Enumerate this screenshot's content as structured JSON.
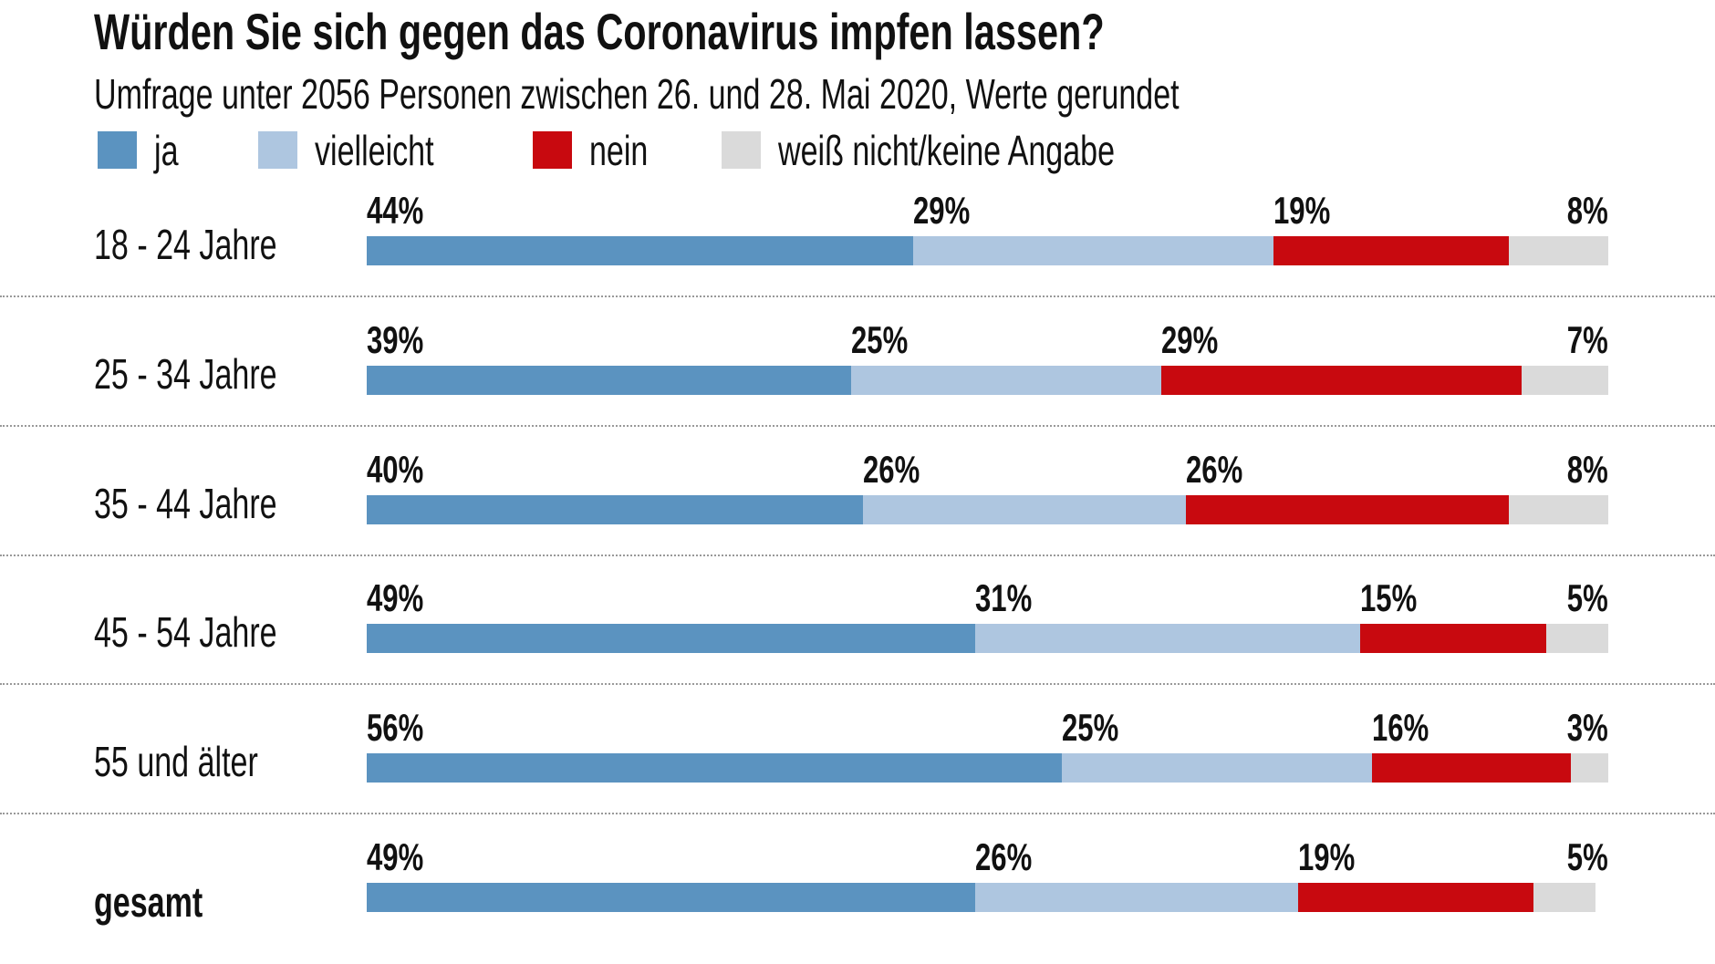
{
  "chart_data": {
    "type": "bar",
    "orientation": "horizontal",
    "stacked": true,
    "title": "Würden Sie sich gegen das Coronavirus impfen lassen?",
    "subtitle": "Umfrage unter 2056 Personen zwischen 26. und 28. Mai 2020, Werte gerundet",
    "unit": "%",
    "legend_placement": "top-left",
    "grid": false,
    "categories": [
      "18 - 24 Jahre",
      "25 - 34 Jahre",
      "35 - 44 Jahre",
      "45 - 54 Jahre",
      "55 und älter",
      "gesamt"
    ],
    "series": [
      {
        "name": "ja",
        "color": "#5b93c0",
        "values": [
          44,
          39,
          40,
          49,
          56,
          49
        ]
      },
      {
        "name": "vielleicht",
        "color": "#aec6e0",
        "values": [
          29,
          25,
          26,
          31,
          25,
          26
        ]
      },
      {
        "name": "nein",
        "color": "#c8090f",
        "values": [
          19,
          29,
          26,
          15,
          16,
          19
        ]
      },
      {
        "name": "weiß nicht/keine Angabe",
        "color": "#dadada",
        "values": [
          8,
          7,
          8,
          5,
          3,
          5
        ]
      }
    ],
    "xlim": [
      0,
      100
    ]
  }
}
